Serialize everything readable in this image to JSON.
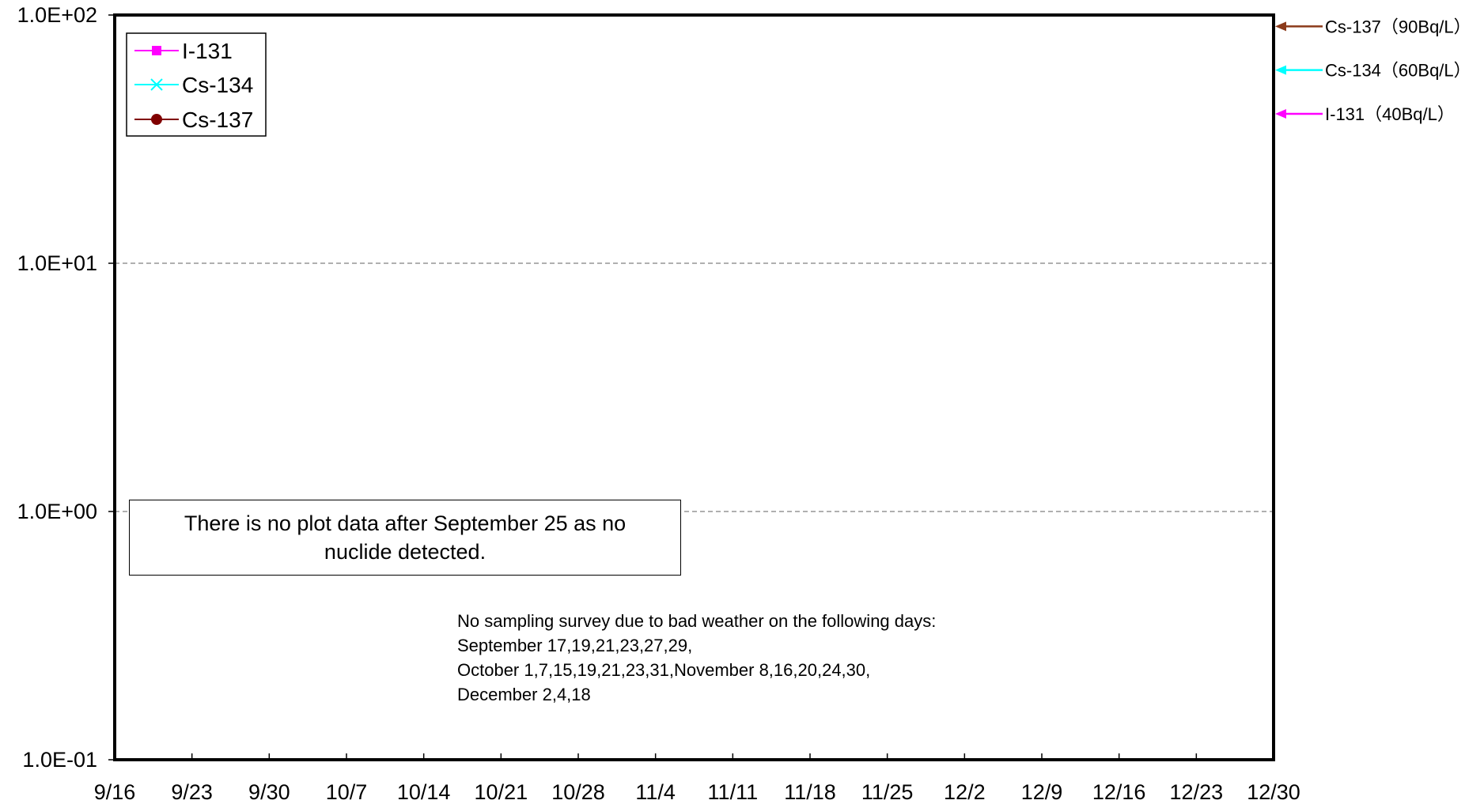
{
  "chart_data": {
    "type": "line",
    "title": "",
    "xlabel": "",
    "ylabel": "",
    "y_scale": "log",
    "ylim": [
      0.1,
      100
    ],
    "y_ticks": [
      "1.0E-01",
      "1.0E+00",
      "1.0E+01",
      "1.0E+02"
    ],
    "x_tick_labels": [
      "9/16",
      "9/23",
      "9/30",
      "10/7",
      "10/14",
      "10/21",
      "10/28",
      "11/4",
      "11/11",
      "11/18",
      "11/25",
      "12/2",
      "12/9",
      "12/16",
      "12/23",
      "12/30"
    ],
    "grid": "horizontal dashed",
    "legend_position": "top-left",
    "series": [
      {
        "name": "I-131",
        "color": "#ff00ff",
        "marker": "square",
        "values": []
      },
      {
        "name": "Cs-134",
        "color": "#00ffff",
        "marker": "x",
        "values": []
      },
      {
        "name": "Cs-137",
        "color": "#800000",
        "marker": "circle",
        "values": []
      }
    ],
    "reference_levels": [
      {
        "label": "Cs-137（90Bq/L）",
        "value": 90,
        "color": "#8b3a1a"
      },
      {
        "label": "Cs-134（60Bq/L）",
        "value": 60,
        "color": "#00ffff"
      },
      {
        "label": "I-131（40Bq/L）",
        "value": 40,
        "color": "#ff00ff"
      }
    ],
    "annotations": {
      "no_data_box": "There is no plot data after September 25 as no nuclide detected.",
      "survey_note": [
        "No sampling survey due to bad weather on the following days:",
        "September 17,19,21,23,27,29,",
        "October 1,7,15,19,21,23,31,November 8,16,20,24,30,",
        "December 2,4,18"
      ]
    }
  }
}
